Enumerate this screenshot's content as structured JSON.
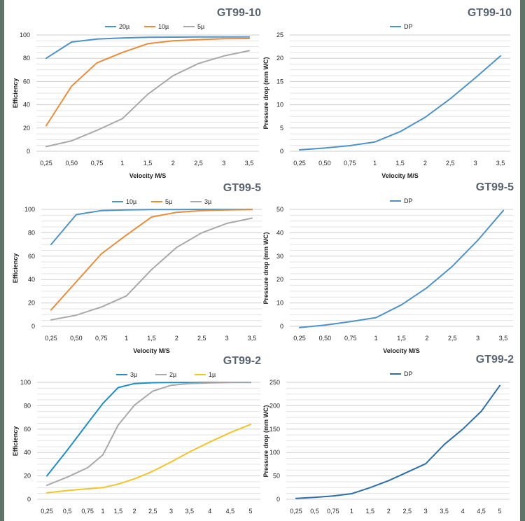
{
  "chart_data": [
    {
      "type": "line",
      "title": "GT99-10",
      "xlabel": "Velocity M/S",
      "ylabel": "Efficiency",
      "categories": [
        "0,25",
        "0,50",
        "0,75",
        "1",
        "1,5",
        "2",
        "2,5",
        "3",
        "3,5"
      ],
      "ylim": [
        0,
        100
      ],
      "yticks": [
        0,
        20,
        40,
        60,
        80,
        100
      ],
      "grid": true,
      "legend": "top-center",
      "series": [
        {
          "name": "20µ",
          "color": "#4e93c6",
          "values": [
            80,
            94,
            96.5,
            97.5,
            98,
            98.2,
            98.3,
            98.3,
            98.4
          ]
        },
        {
          "name": "10µ",
          "color": "#ea8c3a",
          "values": [
            22,
            56,
            76,
            85,
            92.5,
            95,
            96,
            96.8,
            97
          ]
        },
        {
          "name": "5µ",
          "color": "#a9a9a9",
          "values": [
            4,
            9,
            18,
            28,
            49,
            65,
            75.5,
            82,
            86.5
          ]
        }
      ]
    },
    {
      "type": "line",
      "title": "GT99-10",
      "xlabel": "Velocity M/S",
      "ylabel": "Pressure drop (mm WC)",
      "categories": [
        "0,25",
        "0,50",
        "0,75",
        "1",
        "1,5",
        "2",
        "2,5",
        "3",
        "3,5"
      ],
      "ylim": [
        0,
        25
      ],
      "yticks": [
        0,
        5,
        10,
        15,
        20,
        25
      ],
      "grid": true,
      "legend": "top-left",
      "series": [
        {
          "name": "DP",
          "color": "#4e93c6",
          "values": [
            0.3,
            0.7,
            1.2,
            2,
            4.2,
            7.3,
            11.3,
            15.8,
            20.5
          ]
        }
      ]
    },
    {
      "type": "line",
      "title": "GT99-5",
      "xlabel": "Velocity M/S",
      "ylabel": "Efficiency",
      "categories": [
        "0,25",
        "0,50",
        "0,75",
        "1",
        "1,5",
        "2",
        "2,5",
        "3",
        "3,5"
      ],
      "ylim": [
        0,
        100
      ],
      "yticks": [
        0,
        20,
        40,
        60,
        80,
        100
      ],
      "grid": true,
      "legend": "top-center",
      "series": [
        {
          "name": "10µ",
          "color": "#4e93c6",
          "values": [
            70,
            95.5,
            99,
            99.5,
            99.8,
            99.9,
            100,
            100,
            100
          ]
        },
        {
          "name": "5µ",
          "color": "#ea8c3a",
          "values": [
            14,
            38,
            62,
            78,
            93.5,
            97.5,
            99,
            99.5,
            99.8
          ]
        },
        {
          "name": "3µ",
          "color": "#a9a9a9",
          "values": [
            5.5,
            9.5,
            16.5,
            26,
            48.5,
            67.5,
            80,
            88,
            92.5
          ]
        }
      ]
    },
    {
      "type": "line",
      "title": "GT99-5",
      "xlabel": "Velocity M/S",
      "ylabel": "Pressure drop (mm WC)",
      "categories": [
        "0,25",
        "0,50",
        "0,75",
        "1",
        "1,5",
        "2",
        "2,5",
        "3",
        "3,5"
      ],
      "ylim": [
        0,
        50
      ],
      "yticks": [
        0,
        10,
        20,
        30,
        40,
        50
      ],
      "grid": true,
      "legend": "top-left",
      "series": [
        {
          "name": "DP",
          "color": "#4e93c6",
          "values": [
            -0.5,
            0.5,
            2,
            3.7,
            9.2,
            16.5,
            25.7,
            36.8,
            49.5
          ]
        }
      ]
    },
    {
      "type": "line",
      "title": "GT99-2",
      "xlabel": "",
      "ylabel": "Efficiency",
      "categories": [
        "0,25",
        "0,5",
        "0,75",
        "1",
        "1,5",
        "2",
        "2,5",
        "3",
        "3,5",
        "4",
        "4,5",
        "5"
      ],
      "x_positions": [
        0,
        1,
        2,
        2.75,
        3.5,
        4.3,
        5.2,
        6.1,
        7,
        8,
        9,
        10
      ],
      "ylim": [
        0,
        100
      ],
      "yticks": [
        0,
        20,
        40,
        60,
        80,
        100
      ],
      "grid": true,
      "legend": "top-center",
      "series": [
        {
          "name": "3µ",
          "color": "#1d8fc4",
          "values": [
            20,
            42,
            65,
            82,
            95.5,
            99,
            99.7,
            99.8,
            99.9,
            100,
            100,
            100
          ]
        },
        {
          "name": "2µ",
          "color": "#a9a9a9",
          "values": [
            12,
            19,
            27,
            38,
            63.5,
            80.5,
            92.5,
            97.5,
            99,
            99.5,
            99.8,
            99.8
          ]
        },
        {
          "name": "1µ",
          "color": "#f2c428",
          "values": [
            5.5,
            7.5,
            9,
            10,
            13,
            17.5,
            24,
            32,
            40.5,
            49,
            57,
            64
          ]
        }
      ]
    },
    {
      "type": "line",
      "title": "GT99-2",
      "xlabel": "",
      "ylabel": "Pressure drop (mm WC)",
      "categories": [
        "0,25",
        "0,5",
        "0,75",
        "1",
        "1,5",
        "2",
        "2,5",
        "3",
        "3,5",
        "4",
        "4,5",
        "5"
      ],
      "ylim": [
        0,
        250
      ],
      "yticks": [
        0,
        50,
        100,
        150,
        200,
        250
      ],
      "grid": true,
      "legend": "top-left",
      "series": [
        {
          "name": "DP",
          "color": "#2f6fa5",
          "values": [
            2,
            4,
            7,
            12,
            25,
            40,
            58,
            76,
            117,
            150,
            188,
            243
          ]
        }
      ]
    }
  ]
}
